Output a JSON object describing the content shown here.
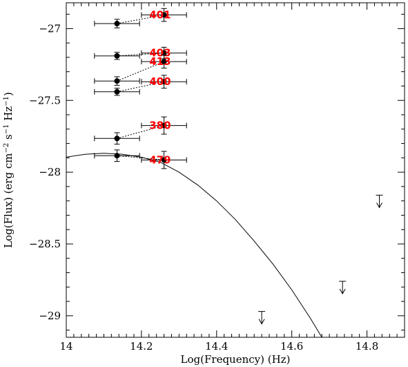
{
  "chart_data": {
    "type": "scatter",
    "title": "",
    "xlabel": "Log(Frequency) (Hz)",
    "ylabel_parts": [
      "Log(Flux) (erg cm",
      "−2",
      " s",
      "−1",
      " Hz",
      "−1",
      ")"
    ],
    "xlim": [
      14.0,
      14.9
    ],
    "ylim": [
      -29.15,
      -26.82
    ],
    "x_ticks": [
      14.0,
      14.2,
      14.4,
      14.6,
      14.8
    ],
    "x_tick_labels": [
      "14",
      "14.2",
      "14.4",
      "14.6",
      "14.8"
    ],
    "y_ticks": [
      -27.0,
      -27.5,
      -28.0,
      -28.5,
      -29.0
    ],
    "y_tick_labels": [
      "−27",
      "−27.5",
      "−28",
      "−28.5",
      "−29"
    ],
    "grid": false,
    "series": [
      {
        "name": "401",
        "points": [
          {
            "x": 14.135,
            "y": -26.965,
            "xerr": [
              14.075,
              14.195
            ],
            "yerr": 0.03
          },
          {
            "x": 14.26,
            "y": -26.905,
            "xerr": [
              14.2,
              14.32
            ],
            "yerr": 0.045
          }
        ]
      },
      {
        "name": "403",
        "points": [
          {
            "x": 14.135,
            "y": -27.19,
            "xerr": [
              14.075,
              14.195
            ],
            "yerr": 0.025
          },
          {
            "x": 14.26,
            "y": -27.17,
            "xerr": [
              14.2,
              14.32
            ],
            "yerr": 0.04
          }
        ]
      },
      {
        "name": "413",
        "points": [
          {
            "x": 14.135,
            "y": -27.365,
            "xerr": [
              14.075,
              14.195
            ],
            "yerr": 0.03
          },
          {
            "x": 14.26,
            "y": -27.23,
            "xerr": [
              14.2,
              14.32
            ],
            "yerr": 0.045
          }
        ]
      },
      {
        "name": "400",
        "points": [
          {
            "x": 14.135,
            "y": -27.44,
            "xerr": [
              14.075,
              14.195
            ],
            "yerr": 0.025
          },
          {
            "x": 14.26,
            "y": -27.37,
            "xerr": [
              14.2,
              14.32
            ],
            "yerr": 0.045
          }
        ]
      },
      {
        "name": "380",
        "points": [
          {
            "x": 14.135,
            "y": -27.765,
            "xerr": [
              14.075,
              14.195
            ],
            "yerr": 0.04
          },
          {
            "x": 14.26,
            "y": -27.675,
            "xerr": [
              14.2,
              14.32
            ],
            "yerr": 0.06
          }
        ]
      },
      {
        "name": "479",
        "points": [
          {
            "x": 14.135,
            "y": -27.885,
            "xerr": [
              14.075,
              14.195
            ],
            "yerr": 0.04
          },
          {
            "x": 14.26,
            "y": -27.915,
            "xerr": [
              14.2,
              14.32
            ],
            "yerr": 0.06
          }
        ]
      }
    ],
    "upper_limits": [
      {
        "x": 14.52,
        "y": -28.97
      },
      {
        "x": 14.735,
        "y": -28.76
      },
      {
        "x": 14.833,
        "y": -28.16
      }
    ],
    "model_curve": {
      "x": [
        13.94,
        14.0,
        14.05,
        14.1,
        14.15,
        14.2,
        14.25,
        14.3,
        14.35,
        14.4,
        14.45,
        14.5,
        14.55,
        14.6,
        14.65,
        14.68
      ],
      "y": [
        -27.93,
        -27.895,
        -27.875,
        -27.868,
        -27.875,
        -27.896,
        -27.93,
        -28.0,
        -28.09,
        -28.2,
        -28.33,
        -28.48,
        -28.64,
        -28.82,
        -29.02,
        -29.15
      ]
    },
    "colors": {
      "label": "#ff0000",
      "marker": "#000000"
    }
  }
}
